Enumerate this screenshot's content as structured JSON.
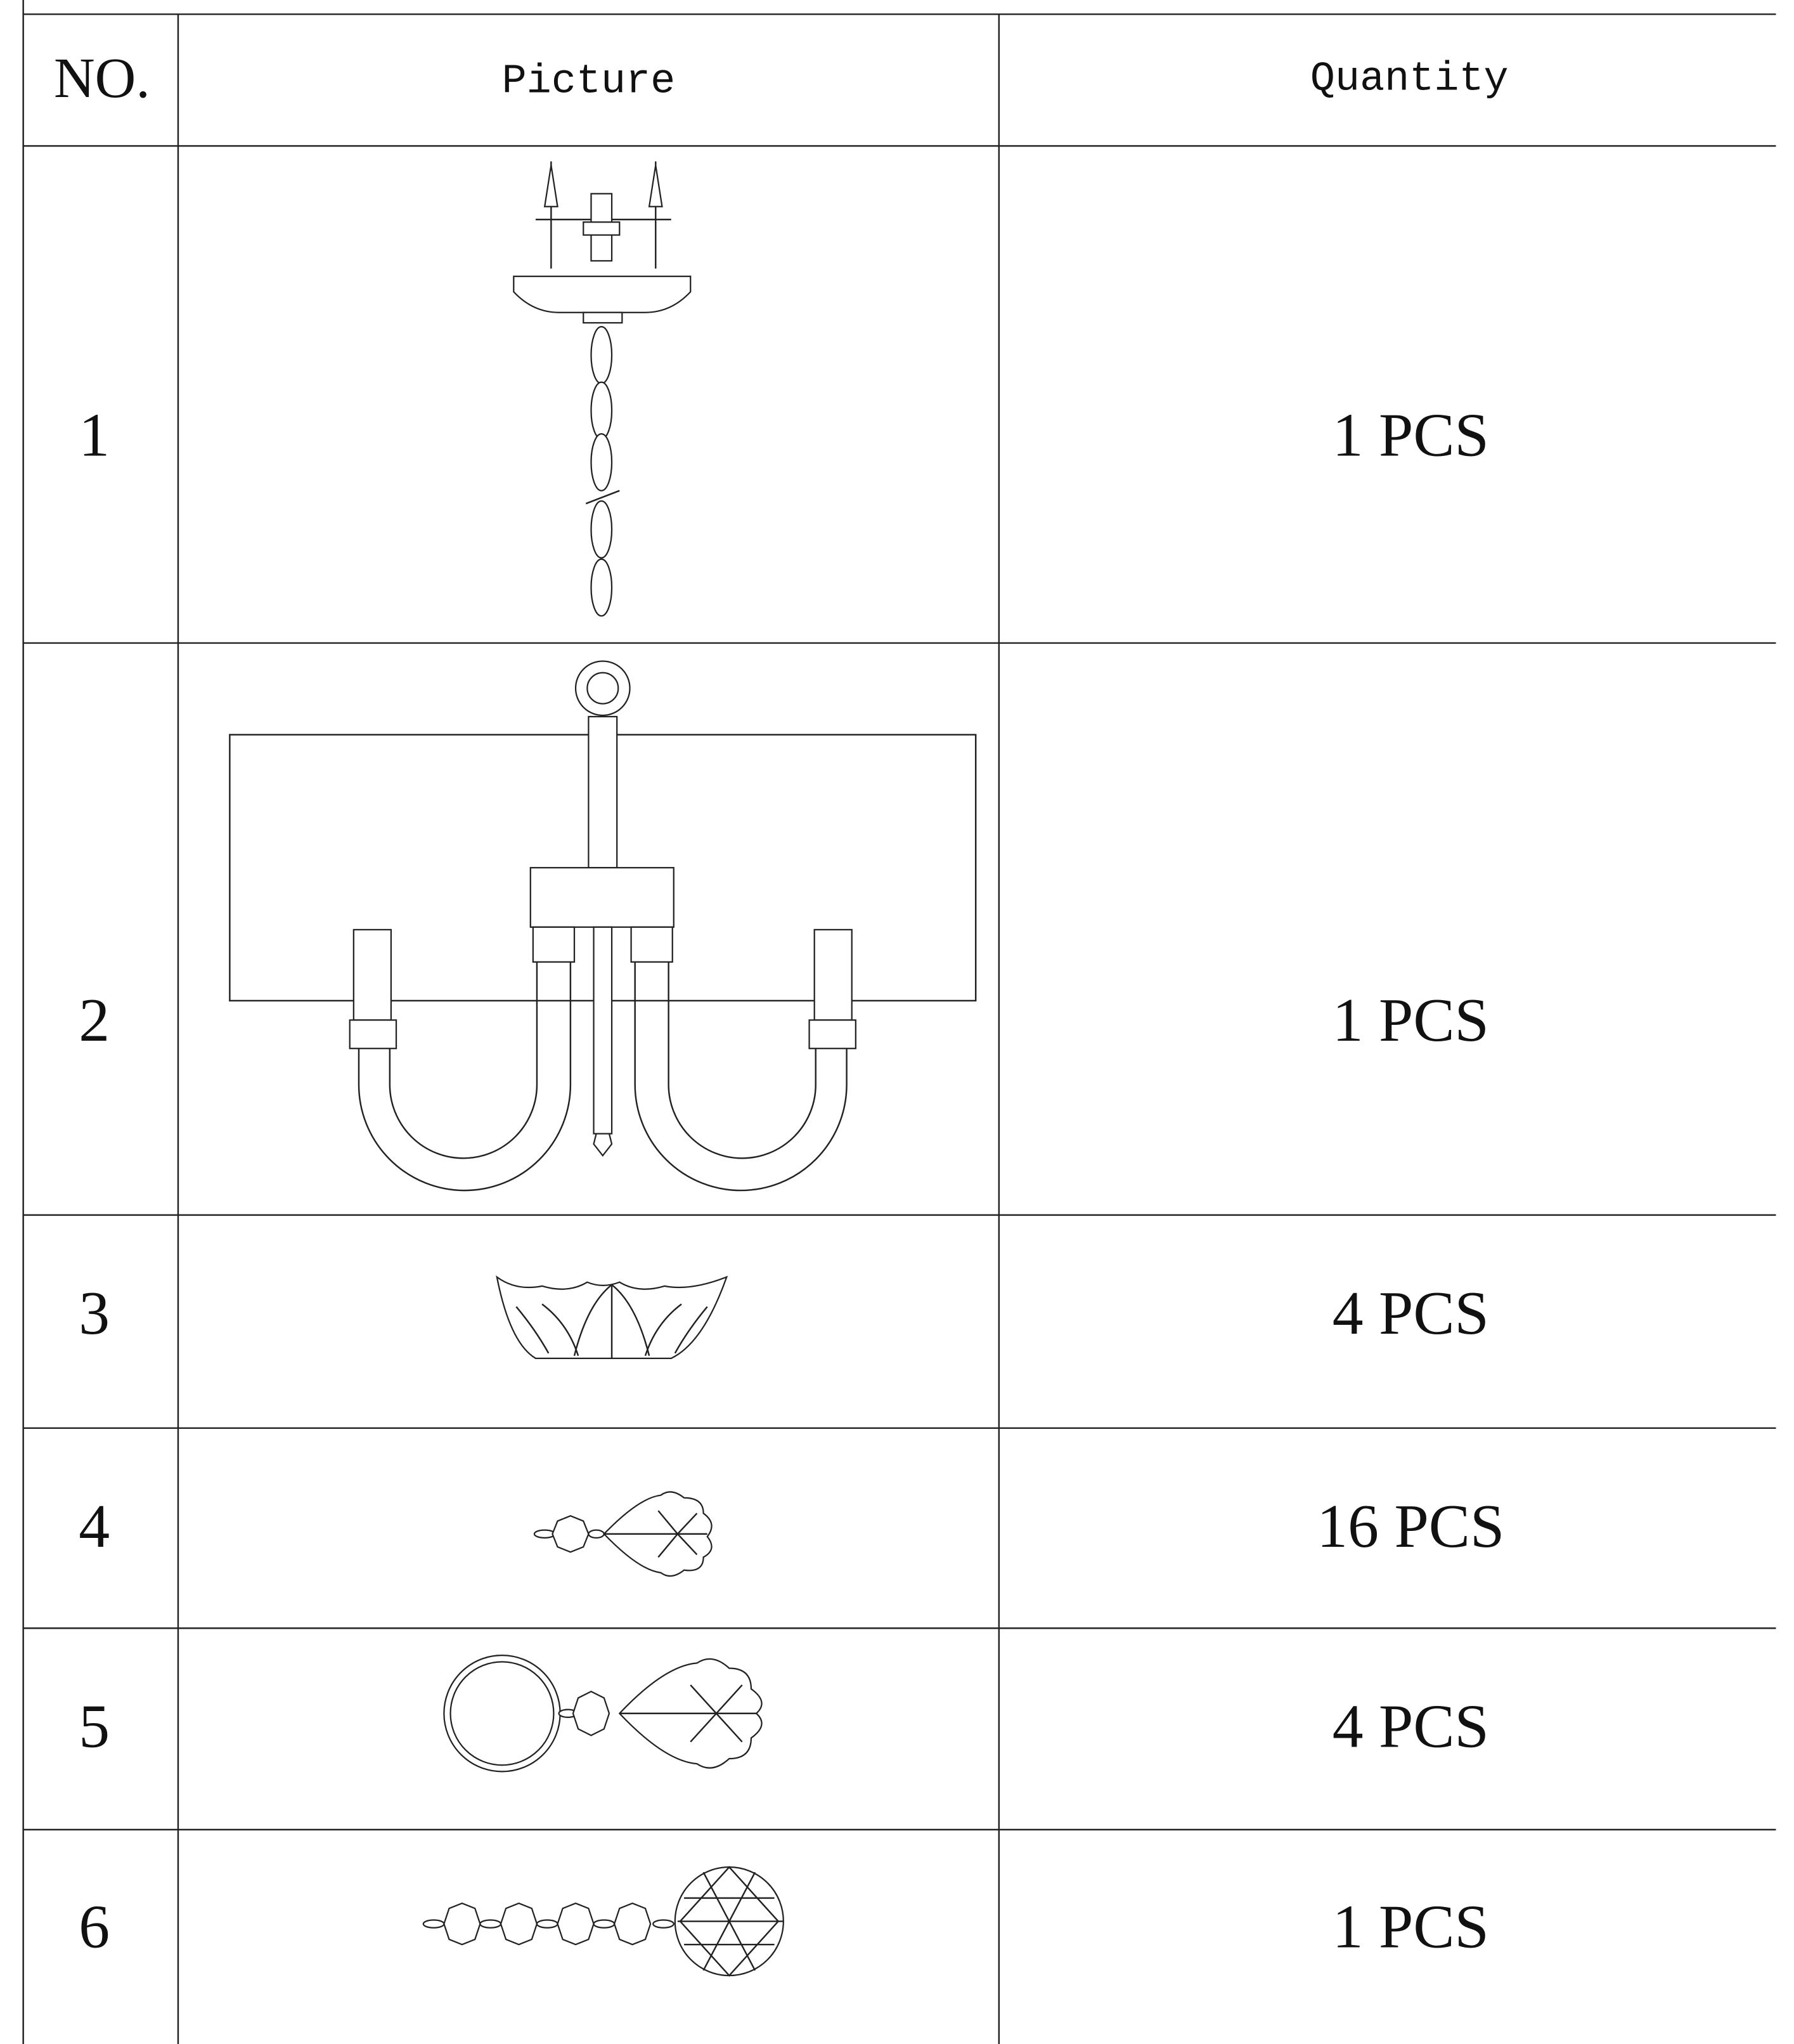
{
  "table": {
    "header": [
      "NO.",
      "Picture",
      "Quantity"
    ],
    "rows": [
      {
        "no": "1",
        "quantity": "1 PCS"
      },
      {
        "no": "2",
        "quantity": "1 PCS"
      },
      {
        "no": "3",
        "quantity": "4 PCS"
      },
      {
        "no": "4",
        "quantity": "16 PCS"
      },
      {
        "no": "5",
        "quantity": "4 PCS"
      },
      {
        "no": "6",
        "quantity": "1 PCS"
      }
    ]
  }
}
